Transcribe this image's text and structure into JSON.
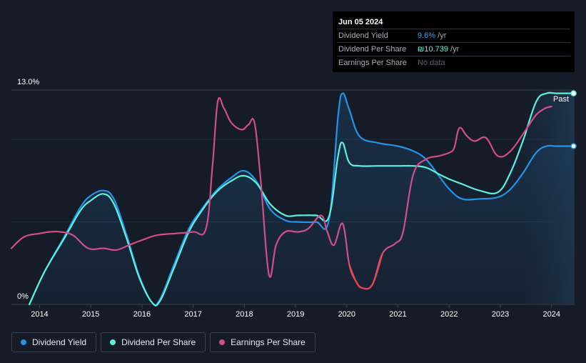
{
  "tooltip": {
    "date": "Jun 05 2024",
    "rows": [
      {
        "label": "Dividend Yield",
        "value": "9.6%",
        "unit": " /yr"
      },
      {
        "label": "Dividend Per Share",
        "value": "₪10.739",
        "unit": " /yr"
      },
      {
        "label": "Earnings Per Share",
        "value": "No data",
        "unit": ""
      }
    ]
  },
  "legend": [
    {
      "label": "Dividend Yield",
      "color": "#2394e6"
    },
    {
      "label": "Dividend Per Share",
      "color": "#5ef0df"
    },
    {
      "label": "Earnings Per Share",
      "color": "#d24d8d"
    }
  ],
  "chart_data": {
    "type": "line",
    "title": "",
    "xlabel": "",
    "ylabel": "",
    "ylim": [
      0,
      13.0
    ],
    "xlim": [
      2013.45,
      2024.45
    ],
    "y_tick_labels": [
      "13.0%",
      "0%"
    ],
    "x_ticks": [
      2014,
      2015,
      2016,
      2017,
      2018,
      2019,
      2020,
      2021,
      2022,
      2023,
      2024
    ],
    "past_label": "Past",
    "forecast_start": 2023.42,
    "series": [
      {
        "name": "Dividend Yield",
        "color": "#2394e6",
        "x": [
          2013.8,
          2014.1,
          2014.5,
          2014.8,
          2015.0,
          2015.25,
          2015.45,
          2015.7,
          2015.95,
          2016.2,
          2016.35,
          2016.6,
          2016.9,
          2017.15,
          2017.45,
          2017.75,
          2018.0,
          2018.25,
          2018.5,
          2018.8,
          2019.05,
          2019.4,
          2019.65,
          2019.83,
          2019.92,
          2020.05,
          2020.25,
          2020.6,
          2021.0,
          2021.3,
          2021.55,
          2021.8,
          2022.0,
          2022.25,
          2022.6,
          2022.95,
          2023.2,
          2023.45,
          2023.7,
          2023.9,
          2024.1,
          2024.43
        ],
        "y": [
          0.0,
          2.0,
          4.2,
          5.9,
          6.6,
          6.9,
          6.4,
          4.2,
          1.7,
          0.1,
          0.3,
          2.2,
          4.5,
          5.7,
          6.9,
          7.7,
          8.1,
          7.4,
          5.8,
          5.1,
          5.0,
          5.0,
          5.1,
          11.4,
          12.8,
          11.8,
          10.2,
          9.8,
          9.6,
          9.3,
          8.8,
          7.8,
          7.0,
          6.4,
          6.4,
          6.5,
          7.0,
          8.0,
          9.2,
          9.6,
          9.6,
          9.6
        ]
      },
      {
        "name": "Dividend Per Share",
        "color": "#5ef0df",
        "x": [
          2013.8,
          2014.1,
          2014.5,
          2014.8,
          2015.0,
          2015.25,
          2015.45,
          2015.7,
          2015.95,
          2016.2,
          2016.35,
          2016.6,
          2016.9,
          2017.15,
          2017.45,
          2017.75,
          2018.0,
          2018.25,
          2018.5,
          2018.8,
          2019.05,
          2019.4,
          2019.65,
          2019.83,
          2019.92,
          2020.05,
          2020.25,
          2020.6,
          2021.0,
          2021.3,
          2021.55,
          2021.8,
          2022.0,
          2022.25,
          2022.6,
          2022.95,
          2023.2,
          2023.45,
          2023.7,
          2023.9,
          2024.1,
          2024.43
        ],
        "y": [
          0.0,
          2.0,
          4.1,
          5.7,
          6.3,
          6.7,
          6.1,
          4.0,
          1.6,
          0.1,
          0.2,
          2.0,
          4.3,
          5.6,
          6.8,
          7.5,
          7.8,
          7.3,
          6.1,
          5.4,
          5.4,
          5.4,
          5.3,
          9.0,
          9.8,
          8.6,
          8.4,
          8.4,
          8.4,
          8.4,
          8.3,
          7.9,
          7.6,
          7.3,
          6.9,
          6.8,
          8.0,
          10.0,
          12.3,
          12.8,
          12.8,
          12.8
        ]
      },
      {
        "name": "Earnings Per Share",
        "color": "#d24d8d",
        "negative_color": "#e8454f",
        "x": [
          2013.45,
          2013.7,
          2014.0,
          2014.2,
          2014.4,
          2014.65,
          2014.95,
          2015.25,
          2015.5,
          2015.75,
          2016.0,
          2016.3,
          2016.65,
          2017.0,
          2017.25,
          2017.38,
          2017.48,
          2017.6,
          2017.75,
          2017.95,
          2018.08,
          2018.2,
          2018.32,
          2018.48,
          2018.62,
          2018.8,
          2019.05,
          2019.25,
          2019.5,
          2019.62,
          2019.75,
          2019.92,
          2020.05,
          2020.18,
          2020.3,
          2020.5,
          2020.7,
          2020.95,
          2021.1,
          2021.3,
          2021.55,
          2021.8,
          2022.0,
          2022.1,
          2022.2,
          2022.35,
          2022.5,
          2022.72,
          2022.95,
          2023.2,
          2023.5,
          2023.7,
          2023.88,
          2024.0
        ],
        "y": [
          3.4,
          4.1,
          4.3,
          4.4,
          4.4,
          4.2,
          3.4,
          3.4,
          3.3,
          3.6,
          3.9,
          4.2,
          4.3,
          4.4,
          4.6,
          8.5,
          12.3,
          11.9,
          11.0,
          10.6,
          10.9,
          11.0,
          7.5,
          1.8,
          3.6,
          4.4,
          4.4,
          4.6,
          5.4,
          4.4,
          3.6,
          4.9,
          2.4,
          1.4,
          1.0,
          1.2,
          3.1,
          3.7,
          4.4,
          7.9,
          8.8,
          9.0,
          9.2,
          9.5,
          10.7,
          10.2,
          9.9,
          10.1,
          9.0,
          9.3,
          10.6,
          11.5,
          11.9,
          12.0
        ]
      }
    ]
  }
}
